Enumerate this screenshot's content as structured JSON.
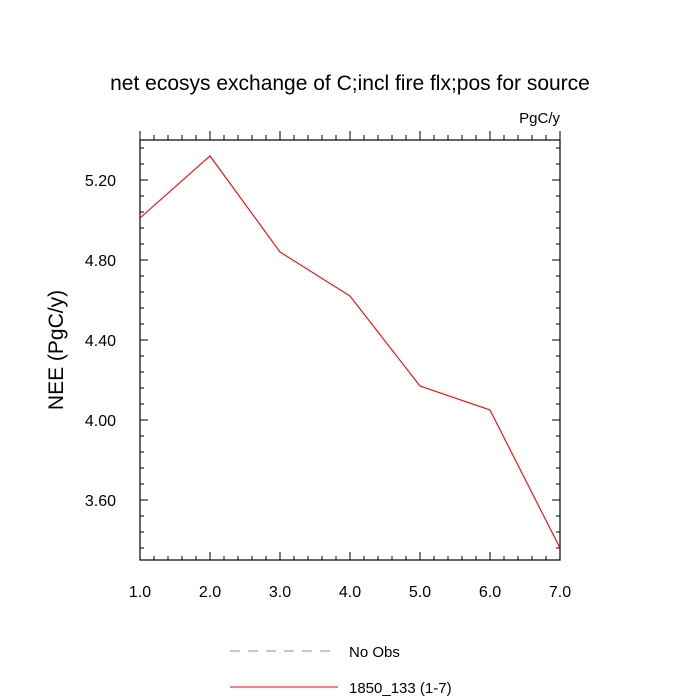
{
  "chart_data": {
    "type": "line",
    "title": "net ecosys exchange of C;incl fire flx;pos for source",
    "units": "PgC/y",
    "ylabel": "NEE  (PgC/y)",
    "xlabel": "",
    "xlim": [
      1,
      7
    ],
    "ylim": [
      3.3,
      5.4
    ],
    "x_ticks": [
      1,
      2,
      3,
      4,
      5,
      6,
      7
    ],
    "x_tick_labels": [
      "1.0",
      "2.0",
      "3.0",
      "4.0",
      "5.0",
      "6.0",
      "7.0"
    ],
    "y_ticks": [
      3.6,
      4.0,
      4.4,
      4.8,
      5.2
    ],
    "y_tick_labels": [
      "3.60",
      "4.00",
      "4.40",
      "4.80",
      "5.20"
    ],
    "grid": false,
    "legend_position": "bottom",
    "series": [
      {
        "name": "1850_133 (1-7)",
        "color": "#ff0000",
        "style": "solid",
        "x": [
          1,
          2,
          3,
          4,
          5,
          6,
          7
        ],
        "y": [
          5.01,
          5.32,
          4.84,
          4.62,
          4.17,
          4.05,
          3.36
        ]
      }
    ],
    "legend": [
      {
        "label": "No Obs",
        "color": "#8080ff",
        "style": "dashed"
      },
      {
        "label": "1850_133 (1-7)",
        "color": "#ff0000",
        "style": "solid"
      }
    ]
  }
}
